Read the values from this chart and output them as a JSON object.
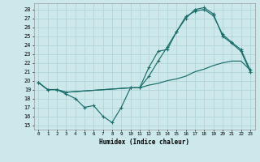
{
  "xlabel": "Humidex (Indice chaleur)",
  "bg_color": "#cce8eb",
  "grid_color": "#b0d4d8",
  "line_color": "#1a6e6a",
  "xlim": [
    -0.5,
    23.5
  ],
  "ylim": [
    14.5,
    28.7
  ],
  "yticks": [
    15,
    16,
    17,
    18,
    19,
    20,
    21,
    22,
    23,
    24,
    25,
    26,
    27,
    28
  ],
  "xticks": [
    0,
    1,
    2,
    3,
    4,
    5,
    6,
    7,
    8,
    9,
    10,
    11,
    12,
    13,
    14,
    15,
    16,
    17,
    18,
    19,
    20,
    21,
    22,
    23
  ],
  "line1_x": [
    0,
    1,
    2,
    3,
    4,
    5,
    6,
    7,
    8,
    9,
    10,
    11,
    12,
    13,
    14,
    15,
    16,
    17,
    18,
    19,
    20,
    21,
    22,
    23
  ],
  "line1_y": [
    19.8,
    19.0,
    19.0,
    18.5,
    18.0,
    17.0,
    17.2,
    16.0,
    15.3,
    17.0,
    19.2,
    19.2,
    21.5,
    23.3,
    23.5,
    25.5,
    27.0,
    28.0,
    28.2,
    27.5,
    25.0,
    24.2,
    23.3,
    21.0
  ],
  "line2_x": [
    0,
    1,
    2,
    3,
    10,
    11,
    12,
    13,
    14,
    15,
    16,
    17,
    18,
    19,
    20,
    21,
    22,
    23
  ],
  "line2_y": [
    19.8,
    19.0,
    19.0,
    18.7,
    19.2,
    19.2,
    20.5,
    22.2,
    23.8,
    25.5,
    27.2,
    27.8,
    28.0,
    27.3,
    25.2,
    24.3,
    23.5,
    21.2
  ],
  "line3_x": [
    0,
    1,
    2,
    3,
    10,
    11,
    12,
    13,
    14,
    15,
    16,
    17,
    18,
    19,
    20,
    21,
    22,
    23
  ],
  "line3_y": [
    19.8,
    19.0,
    19.0,
    18.7,
    19.2,
    19.2,
    19.5,
    19.7,
    20.0,
    20.2,
    20.5,
    21.0,
    21.3,
    21.7,
    22.0,
    22.2,
    22.2,
    21.2
  ]
}
